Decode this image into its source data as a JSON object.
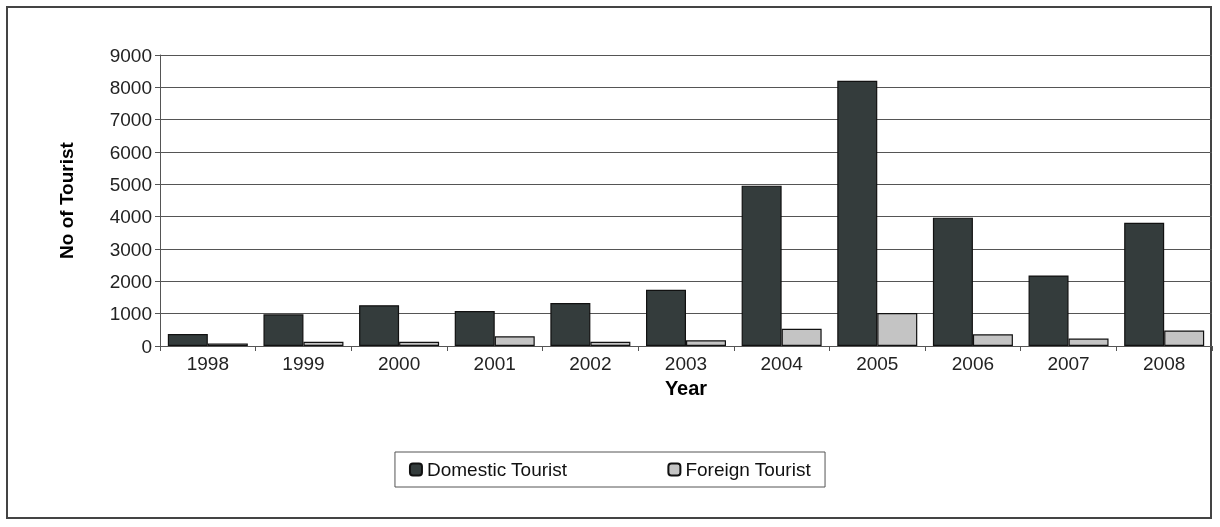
{
  "chart_data": {
    "type": "bar",
    "xlabel": "Year",
    "ylabel": "No of Tourist",
    "categories": [
      "1998",
      "1999",
      "2000",
      "2001",
      "2002",
      "2003",
      "2004",
      "2005",
      "2006",
      "2007",
      "2008"
    ],
    "series": [
      {
        "name": "Domestic Tourist",
        "color": "#343c3c",
        "values": [
          370,
          980,
          1260,
          1080,
          1330,
          1740,
          4960,
          8200,
          3970,
          2180,
          3810
        ]
      },
      {
        "name": "Foreign Tourist",
        "color": "#c4c4c4",
        "values": [
          80,
          130,
          130,
          300,
          130,
          180,
          530,
          1020,
          360,
          230,
          480
        ]
      }
    ],
    "ylim": [
      0,
      9000
    ],
    "yticks": [
      0,
      1000,
      2000,
      3000,
      4000,
      5000,
      6000,
      7000,
      8000,
      9000
    ],
    "grid": "y",
    "legend": "bottom"
  }
}
